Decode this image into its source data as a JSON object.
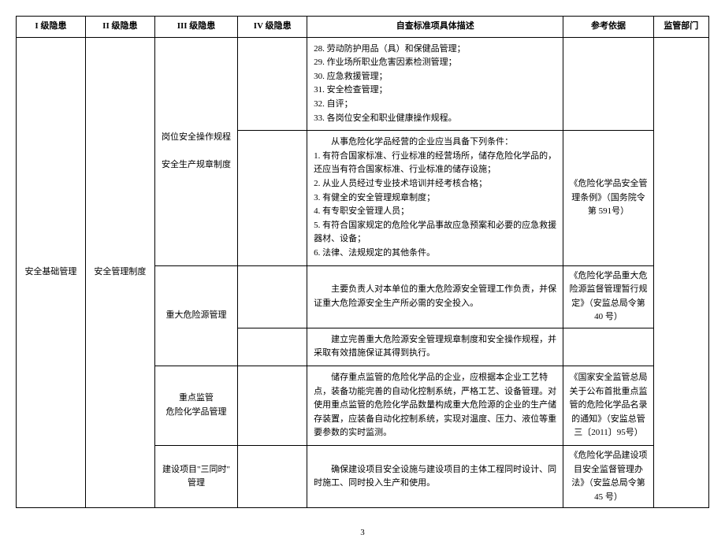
{
  "headers": {
    "col1": "I 级隐患",
    "col2": "II 级隐患",
    "col3": "III 级隐患",
    "col4": "IV 级隐患",
    "col5": "自查标准项具体描述",
    "col6": "参考依据",
    "col7": "监管部门"
  },
  "level1": "安全基础管理",
  "level2": "安全管理制度",
  "rows": {
    "r1": {
      "level3": "岗位安全操作规程\n\n安全生产规章制度",
      "desc1_lines": [
        "28. 劳动防护用品（具）和保健品管理；",
        "29. 作业场所职业危害因素检测管理；",
        "30. 应急救援管理；",
        "31. 安全检查管理；",
        "32. 自评；",
        "33. 各岗位安全和职业健康操作规程。"
      ],
      "desc2_pre": "从事危险化学品经营的企业应当具备下列条件：",
      "desc2_lines": [
        "1. 有符合国家标准、行业标准的经营场所，储存危险化学品的，还应当有符合国家标准、行业标准的储存设施；",
        "2. 从业人员经过专业技术培训并经考核合格；",
        "3. 有健全的安全管理规章制度；",
        "4. 有专职安全管理人员；",
        "5. 有符合国家规定的危险化学品事故应急预案和必要的应急救援器材、设备；",
        "6. 法律、法规规定的其他条件。"
      ],
      "ref2": "《危险化学品安全管理条例》（国务院令第 591号）"
    },
    "r2": {
      "level3": "重大危险源管理",
      "desc1": "主要负责人对本单位的重大危险源安全管理工作负责，并保证重大危险源安全生产所必需的安全投入。",
      "ref1": "《危险化学品重大危险源监督管理暂行规定》（安监总局令第 40 号）",
      "desc2": "建立完善重大危险源安全管理规章制度和安全操作规程，并采取有效措施保证其得到执行。"
    },
    "r3": {
      "level3": "重点监管\n危险化学品管理",
      "desc": "储存重点监管的危险化学品的企业，应根据本企业工艺特点，装备功能完善的自动化控制系统，严格工艺、设备管理。对使用重点监管的危险化学品数量构成重大危险源的企业的生产储存装置，应装备自动化控制系统，实现对温度、压力、液位等重要参数的实时监测。",
      "ref": "《国家安全监管总局关于公布首批重点监管的危险化学品名录的通知》（安监总管三〔2011〕95号）"
    },
    "r4": {
      "level3": "建设项目\"三同时\"\n管理",
      "desc": "确保建设项目安全设施与建设项目的主体工程同时设计、同时施工、同时投入生产和使用。",
      "ref": "《危险化学品建设项目安全监督管理办法》（安监总局令第 45 号）"
    }
  },
  "pageNumber": "3"
}
